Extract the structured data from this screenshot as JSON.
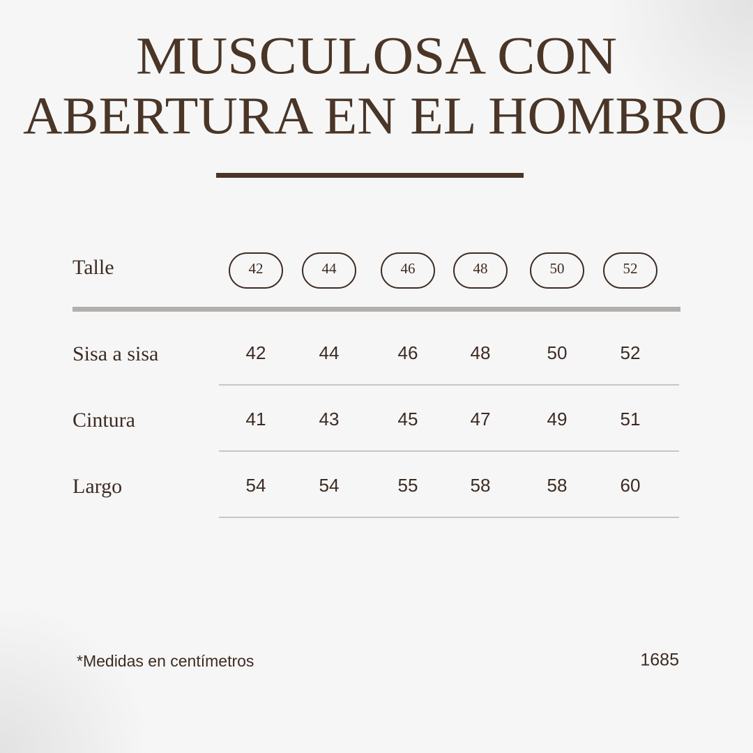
{
  "header": {
    "title_lines": [
      "MUSCULOSA CON",
      "ABERTURA EN EL HOMBRO"
    ]
  },
  "table": {
    "header_label": "Talle",
    "sizes": [
      42,
      44,
      46,
      48,
      50,
      52
    ],
    "rows": [
      {
        "label": "Sisa a sisa",
        "values": [
          42,
          44,
          46,
          48,
          50,
          52
        ]
      },
      {
        "label": "Cintura",
        "values": [
          41,
          43,
          45,
          47,
          49,
          51
        ]
      },
      {
        "label": "Largo",
        "values": [
          54,
          54,
          55,
          58,
          58,
          60
        ]
      }
    ]
  },
  "footer": {
    "note": "*Medidas en centímetros",
    "code": "1685"
  }
}
